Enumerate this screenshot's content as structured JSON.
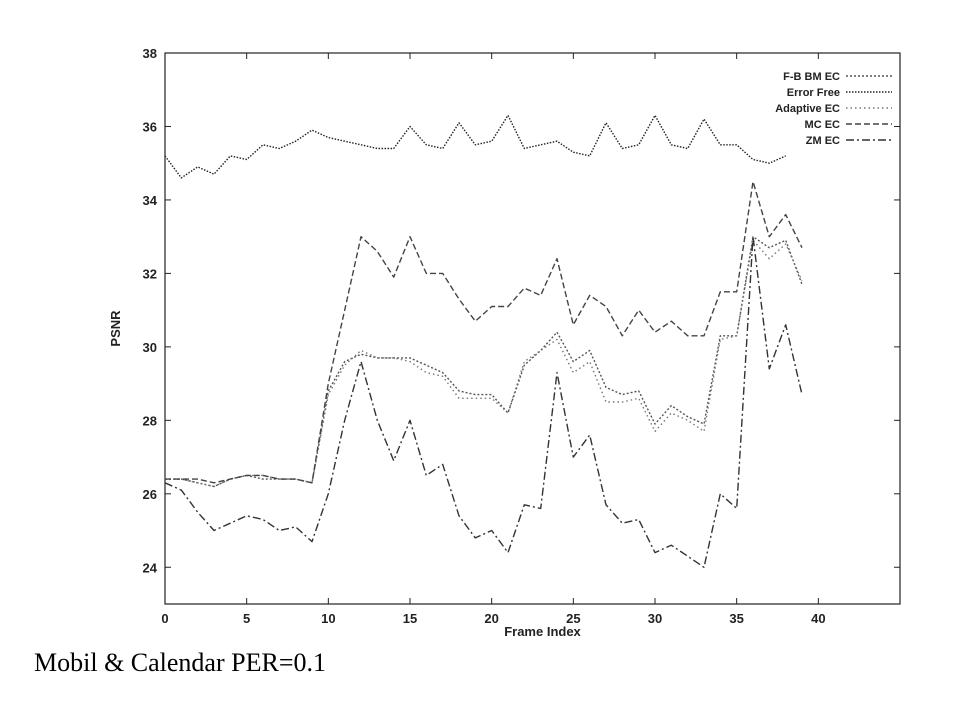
{
  "caption": "Mobil & Calendar  PER=0.1",
  "chart_data": {
    "type": "line",
    "title": "",
    "xlabel": "Frame Index",
    "ylabel": "PSNR",
    "xlim": [
      0,
      45
    ],
    "ylim": [
      23,
      38
    ],
    "xticks": [
      0,
      5,
      10,
      15,
      20,
      25,
      30,
      35,
      40
    ],
    "yticks": [
      24,
      26,
      28,
      30,
      32,
      34,
      36,
      38
    ],
    "grid": false,
    "legend_position": "top-right",
    "series": [
      {
        "name": "F-B BM EC",
        "style": "dotted",
        "color": "#555555",
        "y": [
          26.4,
          26.4,
          26.3,
          26.2,
          26.4,
          26.5,
          26.4,
          26.4,
          26.4,
          26.3,
          28.8,
          29.6,
          29.8,
          29.7,
          29.7,
          29.7,
          29.5,
          29.3,
          28.8,
          28.7,
          28.7,
          28.2,
          29.5,
          29.9,
          30.4,
          29.6,
          29.9,
          28.9,
          28.7,
          28.8,
          27.9,
          28.4,
          28.1,
          27.9,
          30.3,
          30.3,
          33.0,
          32.7,
          32.9,
          31.7
        ]
      },
      {
        "name": "Error Free",
        "style": "densely-dotted",
        "color": "#222222",
        "y": [
          35.2,
          34.6,
          34.9,
          34.7,
          35.2,
          35.1,
          35.5,
          35.4,
          35.6,
          35.9,
          35.7,
          35.6,
          35.5,
          35.4,
          35.4,
          36.0,
          35.5,
          35.4,
          36.1,
          35.5,
          35.6,
          36.3,
          35.4,
          35.5,
          35.6,
          35.3,
          35.2,
          36.1,
          35.4,
          35.5,
          36.3,
          35.5,
          35.4,
          36.2,
          35.5,
          35.5,
          35.1,
          35.0,
          35.2,
          null
        ]
      },
      {
        "name": "Adaptive EC",
        "style": "sparse-dotted",
        "color": "#777777",
        "y": [
          26.4,
          26.4,
          26.3,
          26.2,
          26.4,
          26.5,
          26.5,
          26.4,
          26.4,
          26.3,
          28.7,
          29.5,
          29.9,
          29.7,
          29.7,
          29.6,
          29.3,
          29.2,
          28.6,
          28.6,
          28.6,
          28.2,
          29.6,
          29.9,
          30.2,
          29.3,
          29.6,
          28.5,
          28.5,
          28.6,
          27.7,
          28.2,
          28.0,
          27.7,
          30.2,
          30.3,
          32.9,
          32.4,
          32.8,
          31.8
        ]
      },
      {
        "name": "MC EC",
        "style": "dashed",
        "color": "#444444",
        "y": [
          26.4,
          26.4,
          26.4,
          26.3,
          26.4,
          26.5,
          26.5,
          26.4,
          26.4,
          26.3,
          29.0,
          31.0,
          33.0,
          32.6,
          31.9,
          33.0,
          32.0,
          32.0,
          31.3,
          30.7,
          31.1,
          31.1,
          31.6,
          31.4,
          32.4,
          30.6,
          31.4,
          31.1,
          30.3,
          31.0,
          30.4,
          30.7,
          30.3,
          30.3,
          31.5,
          31.5,
          34.5,
          33.0,
          33.6,
          32.7
        ]
      },
      {
        "name": "ZM EC",
        "style": "dash-dot",
        "color": "#333333",
        "y": [
          26.3,
          26.1,
          25.5,
          25.0,
          25.2,
          25.4,
          25.3,
          25.0,
          25.1,
          24.7,
          26.0,
          28.0,
          29.6,
          28.0,
          26.9,
          28.0,
          26.5,
          26.8,
          25.4,
          24.8,
          25.0,
          24.4,
          25.7,
          25.6,
          29.3,
          27.0,
          27.6,
          25.7,
          25.2,
          25.3,
          24.4,
          24.6,
          24.3,
          24.0,
          26.0,
          25.6,
          33.0,
          29.4,
          30.6,
          28.7
        ]
      }
    ]
  }
}
